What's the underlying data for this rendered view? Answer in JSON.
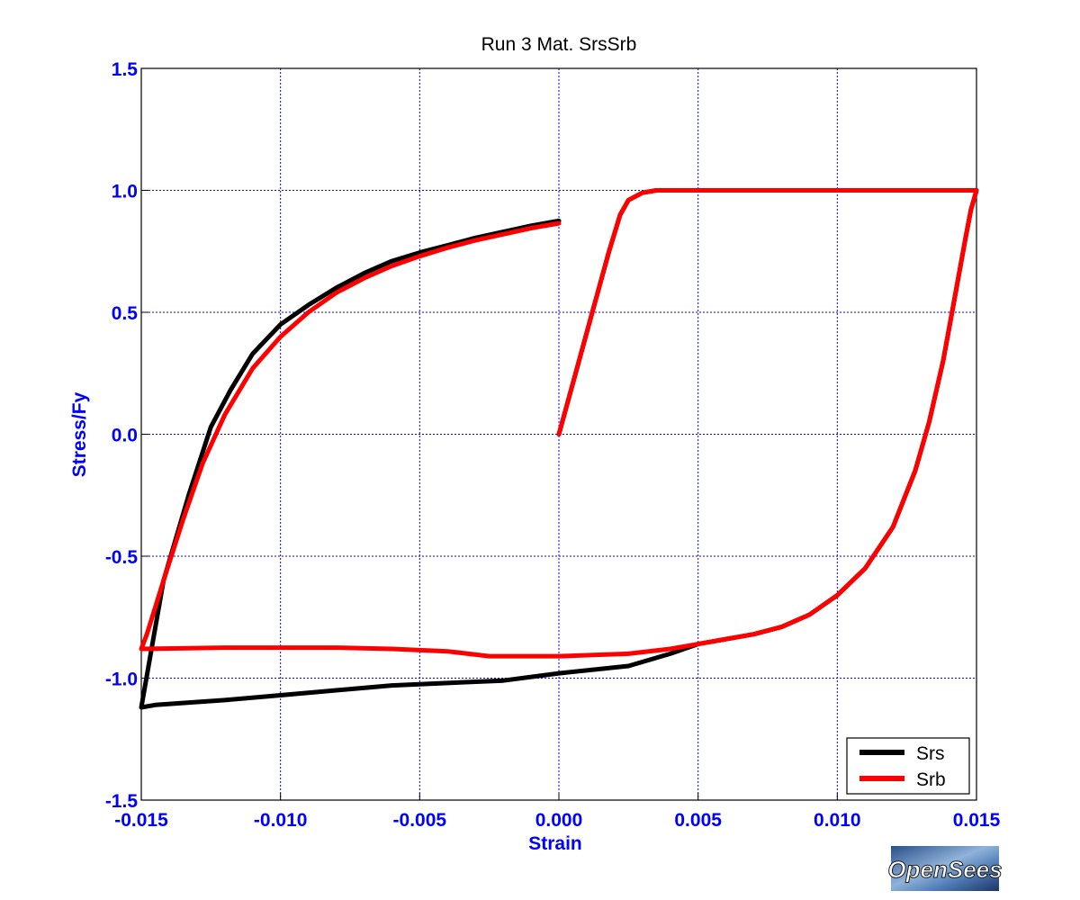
{
  "chart_data": {
    "type": "line",
    "title": "Run 3   Mat. SrsSrb",
    "xlabel": "Strain",
    "ylabel": "Stress/Fy",
    "xlim": [
      -0.015,
      0.015
    ],
    "ylim": [
      -1.5,
      1.5
    ],
    "xticks": [
      -0.015,
      -0.01,
      -0.005,
      0.0,
      0.005,
      0.01,
      0.015
    ],
    "xtick_labels": [
      "-0.015",
      "-0.010",
      "-0.005",
      "0.000",
      "0.005",
      "0.010",
      "0.015"
    ],
    "yticks": [
      -1.5,
      -1.0,
      -0.5,
      0.0,
      0.5,
      1.0,
      1.5
    ],
    "ytick_labels": [
      "-1.5",
      "-1.0",
      "-0.5",
      "0.0",
      "0.5",
      "1.0",
      "1.5"
    ],
    "grid": true,
    "legend_position": "bottom-right",
    "series": [
      {
        "name": "Srs",
        "color": "#000000",
        "x": [
          0.0,
          0.0006,
          0.0012,
          0.0018,
          0.0022,
          0.0025,
          0.003,
          0.0035,
          0.005,
          0.007,
          0.009,
          0.011,
          0.013,
          0.015,
          0.0148,
          0.0146,
          0.0142,
          0.0138,
          0.0133,
          0.0128,
          0.012,
          0.011,
          0.01,
          0.009,
          0.008,
          0.007,
          0.006,
          0.005,
          0.004,
          0.0025,
          0.0,
          -0.002,
          -0.004,
          -0.006,
          -0.008,
          -0.01,
          -0.012,
          -0.0145,
          -0.015,
          -0.0142,
          -0.0133,
          -0.0125,
          -0.0118,
          -0.011,
          -0.01,
          -0.009,
          -0.008,
          -0.007,
          -0.006,
          -0.005,
          -0.004,
          -0.003,
          -0.002,
          -0.001,
          0.0
        ],
        "y": [
          0.0,
          0.25,
          0.5,
          0.75,
          0.9,
          0.96,
          0.99,
          1.0,
          1.0,
          1.0,
          1.0,
          1.0,
          1.0,
          1.0,
          0.92,
          0.8,
          0.55,
          0.3,
          0.05,
          -0.15,
          -0.38,
          -0.55,
          -0.66,
          -0.74,
          -0.79,
          -0.82,
          -0.84,
          -0.86,
          -0.9,
          -0.95,
          -0.98,
          -1.01,
          -1.02,
          -1.03,
          -1.05,
          -1.07,
          -1.09,
          -1.11,
          -1.12,
          -0.6,
          -0.25,
          0.03,
          0.18,
          0.33,
          0.45,
          0.53,
          0.6,
          0.66,
          0.71,
          0.745,
          0.775,
          0.805,
          0.83,
          0.855,
          0.875
        ]
      },
      {
        "name": "Srb",
        "color": "#ff0000",
        "x": [
          0.0,
          0.0006,
          0.0012,
          0.0018,
          0.0022,
          0.0025,
          0.003,
          0.0035,
          0.005,
          0.007,
          0.009,
          0.011,
          0.013,
          0.015,
          0.0148,
          0.0146,
          0.0142,
          0.0138,
          0.0133,
          0.0128,
          0.012,
          0.011,
          0.01,
          0.009,
          0.008,
          0.007,
          0.006,
          0.005,
          0.004,
          0.0025,
          0.0,
          -0.002,
          -0.0025,
          -0.004,
          -0.006,
          -0.008,
          -0.01,
          -0.012,
          -0.015,
          -0.0148,
          -0.0142,
          -0.0135,
          -0.0128,
          -0.012,
          -0.011,
          -0.01,
          -0.009,
          -0.008,
          -0.007,
          -0.006,
          -0.005,
          -0.004,
          -0.003,
          -0.002,
          -0.001,
          0.0
        ],
        "y": [
          0.0,
          0.25,
          0.5,
          0.75,
          0.9,
          0.96,
          0.99,
          1.0,
          1.0,
          1.0,
          1.0,
          1.0,
          1.0,
          1.0,
          0.92,
          0.8,
          0.55,
          0.3,
          0.05,
          -0.15,
          -0.38,
          -0.55,
          -0.66,
          -0.74,
          -0.79,
          -0.82,
          -0.84,
          -0.86,
          -0.88,
          -0.9,
          -0.91,
          -0.91,
          -0.91,
          -0.89,
          -0.88,
          -0.875,
          -0.875,
          -0.875,
          -0.88,
          -0.82,
          -0.6,
          -0.35,
          -0.12,
          0.08,
          0.27,
          0.4,
          0.5,
          0.58,
          0.64,
          0.69,
          0.73,
          0.765,
          0.795,
          0.82,
          0.845,
          0.865
        ]
      }
    ]
  },
  "logo": {
    "text": "OpenSees"
  }
}
